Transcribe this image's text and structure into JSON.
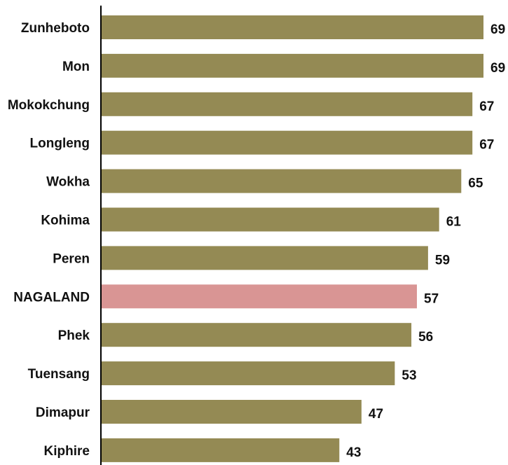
{
  "chart_data": {
    "type": "bar",
    "orientation": "horizontal",
    "title": "",
    "xlabel": "",
    "ylabel": "",
    "categories": [
      "Zunheboto",
      "Mon",
      "Mokokchung",
      "Longleng",
      "Wokha",
      "Kohima",
      "Peren",
      "NAGALAND",
      "Phek",
      "Tuensang",
      "Dimapur",
      "Kiphire"
    ],
    "values": [
      69,
      69,
      67,
      67,
      65,
      61,
      59,
      57,
      56,
      53,
      47,
      43
    ],
    "highlight": "NAGALAND",
    "colors": {
      "bar": "#948a54",
      "highlight": "#d99594",
      "axis": "#000000",
      "text": "#111111"
    },
    "grid": false,
    "legend": "none",
    "xlim": [
      0,
      69
    ]
  }
}
